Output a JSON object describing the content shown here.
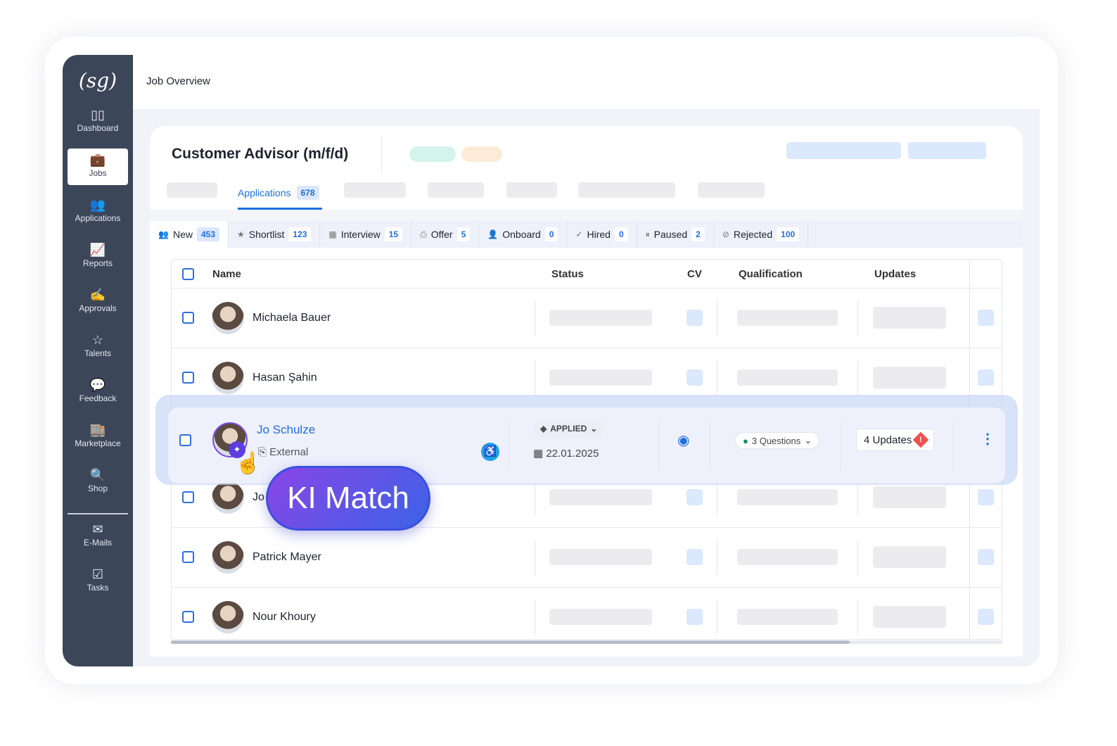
{
  "header": {
    "title": "Job Overview"
  },
  "logo": "(sg)",
  "sidebar": {
    "items": [
      {
        "label": "Dashboard",
        "icon": "dashboard-icon",
        "glyph": "▯▯"
      },
      {
        "label": "Jobs",
        "icon": "briefcase-icon",
        "glyph": "💼",
        "active": true
      },
      {
        "label": "Applications",
        "icon": "users-icon",
        "glyph": "👥"
      },
      {
        "label": "Reports",
        "icon": "chart-icon",
        "glyph": "📈"
      },
      {
        "label": "Approvals",
        "icon": "signature-icon",
        "glyph": "✍"
      },
      {
        "label": "Talents",
        "icon": "star-icon",
        "glyph": "☆"
      },
      {
        "label": "Feedback",
        "icon": "feedback-icon",
        "glyph": "💬"
      },
      {
        "label": "Marketplace",
        "icon": "store-icon",
        "glyph": "🏬"
      },
      {
        "label": "Shop",
        "icon": "shop-icon",
        "glyph": "🔍"
      },
      {
        "label": "E-Mails",
        "icon": "mail-icon",
        "glyph": "✉"
      },
      {
        "label": "Tasks",
        "icon": "checkbox-icon",
        "glyph": "☑"
      }
    ]
  },
  "job": {
    "title": "Customer Advisor (m/f/d)",
    "tab_label": "Applications",
    "tab_count": "678",
    "accent": "#1f6fe0"
  },
  "pipeline": [
    {
      "label": "New",
      "count": "453",
      "glyph": "👥"
    },
    {
      "label": "Shortlist",
      "count": "123",
      "glyph": "★"
    },
    {
      "label": "Interview",
      "count": "15",
      "glyph": "▦"
    },
    {
      "label": "Offer",
      "count": "5",
      "glyph": "⎙"
    },
    {
      "label": "Onboard",
      "count": "0",
      "glyph": "👤"
    },
    {
      "label": "Hired",
      "count": "0",
      "glyph": "✓"
    },
    {
      "label": "Paused",
      "count": "2",
      "glyph": "⏸"
    },
    {
      "label": "Rejected",
      "count": "100",
      "glyph": "⊘"
    }
  ],
  "table": {
    "columns": [
      "Name",
      "Status",
      "CV",
      "Qualification",
      "Updates"
    ],
    "rows": [
      {
        "name": "Michaela Bauer"
      },
      {
        "name": "Hasan Şahin"
      },
      {
        "name": "Jo"
      },
      {
        "name": "Patrick Mayer"
      },
      {
        "name": "Nour Khoury"
      }
    ],
    "highlight": {
      "name": "Jo Schulze",
      "source": "External",
      "status": "APPLIED",
      "date": "22.01.2025",
      "qualification": "3 Questions",
      "updates": "4 Updates"
    }
  },
  "ki_match": "KI Match"
}
